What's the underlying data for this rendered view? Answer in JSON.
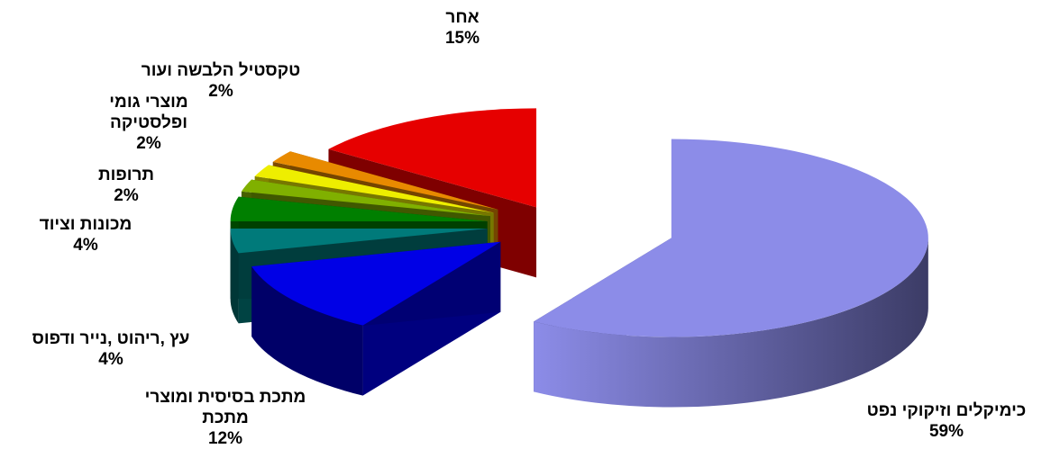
{
  "chart_data": {
    "type": "pie",
    "variant": "3d-exploded",
    "title": "",
    "slices": [
      {
        "label": "כימיקלים וזיקוקי נפט",
        "value": 59,
        "display": "59%",
        "color": "#8c8ce8"
      },
      {
        "label": "מתכת בסיסית ומוצרי מתכת",
        "value": 12,
        "display": "12%",
        "color": "#0000e6"
      },
      {
        "label": "עץ ,ריהוט ,נייר ודפוס",
        "value": 4,
        "display": "4%",
        "color": "#007a7a"
      },
      {
        "label": "מכונות וציוד",
        "value": 4,
        "display": "4%",
        "color": "#007f00"
      },
      {
        "label": "תרופות",
        "value": 2,
        "display": "2%",
        "color": "#80b000"
      },
      {
        "label": "מוצרי גומי ופלסטיקה",
        "value": 2,
        "display": "2%",
        "color": "#eeee00"
      },
      {
        "label": "טקסטיל הלבשה ועור",
        "value": 2,
        "display": "2%",
        "color": "#e88a00"
      },
      {
        "label": "אחר",
        "value": 15,
        "display": "15%",
        "color": "#e60000"
      }
    ],
    "label_lines": [
      [
        "כימיקלים וזיקוקי נפט"
      ],
      [
        "מתכת בסיסית ומוצרי",
        "מתכת"
      ],
      [
        "עץ ,ריהוט ,נייר ודפוס"
      ],
      [
        "מכונות וציוד"
      ],
      [
        "תרופות"
      ],
      [
        "מוצרי גומי",
        "ופלסטיקה"
      ],
      [
        "טקסטיל הלבשה ועור"
      ],
      [
        "אחר"
      ]
    ],
    "legend": "none"
  }
}
